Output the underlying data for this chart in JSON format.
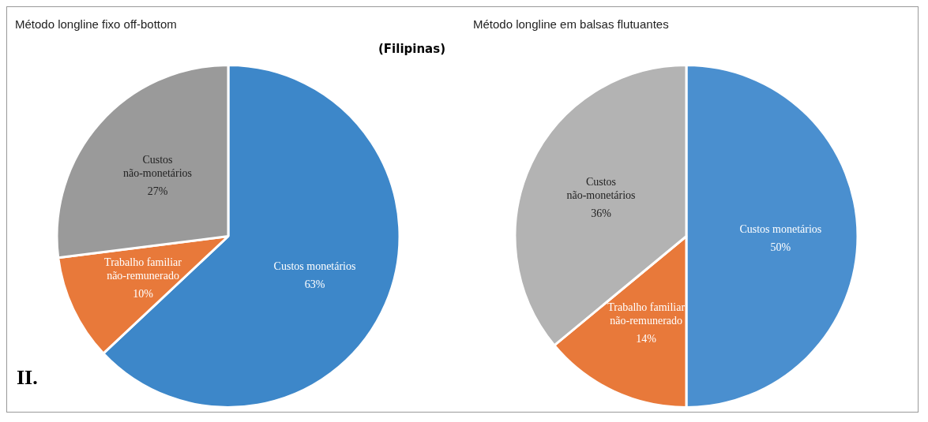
{
  "chart_data": [
    {
      "type": "pie",
      "title": "Método longline fixo off-bottom",
      "subtitle": "(Filipinas)",
      "annotations": [
        "II."
      ],
      "categories": [
        "Custos monetários",
        "Trabalho familiar não-remunerado",
        "Custos não-monetários"
      ],
      "values": [
        63,
        10,
        27
      ],
      "value_labels": [
        "63%",
        "10%",
        "27%"
      ],
      "colors": [
        "#3d87c9",
        "#e8793a",
        "#9a9a9a"
      ],
      "legend": false
    },
    {
      "type": "pie",
      "title": "Método longline em balsas flutuantes",
      "categories": [
        "Custos monetários",
        "Trabalho familiar não-remunerado",
        "Custos não-monetários"
      ],
      "values": [
        50,
        14,
        36
      ],
      "value_labels": [
        "50%",
        "14%",
        "36%"
      ],
      "colors": [
        "#4a8fcf",
        "#e8793a",
        "#b3b3b3"
      ],
      "legend": false
    }
  ]
}
